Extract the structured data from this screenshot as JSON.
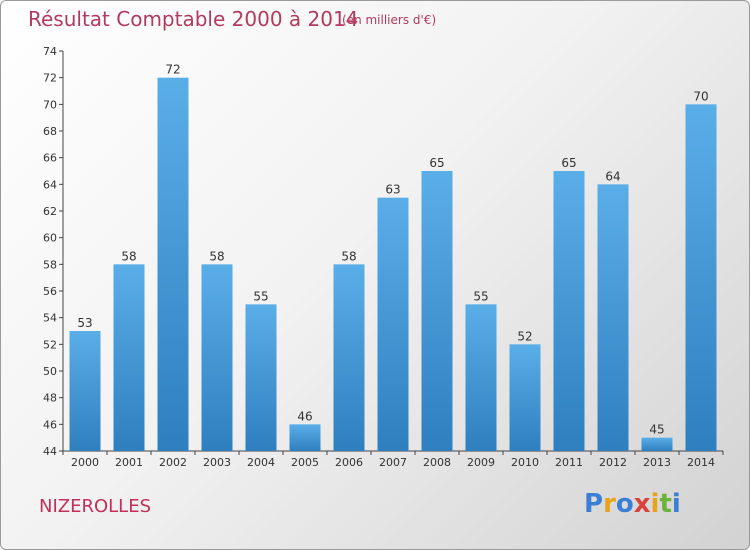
{
  "title": "Résultat Comptable 2000 à 2014",
  "subtitle": "(en milliers d'€)",
  "commune": "NIZEROLLES",
  "logo": {
    "text": "Proxiti",
    "colors": [
      "#3a7fd5",
      "#e8a21c",
      "#3a7fd5",
      "#d9433b",
      "#e8a21c",
      "#6bb43a",
      "#3a7fd5"
    ]
  },
  "chart_data": {
    "type": "bar",
    "title": "Résultat Comptable 2000 à 2014",
    "subtitle": "(en milliers d'€)",
    "xlabel": "",
    "ylabel": "",
    "categories": [
      "2000",
      "2001",
      "2002",
      "2003",
      "2004",
      "2005",
      "2006",
      "2007",
      "2008",
      "2009",
      "2010",
      "2011",
      "2012",
      "2013",
      "2014"
    ],
    "values": [
      53,
      58,
      72,
      58,
      55,
      46,
      58,
      63,
      65,
      55,
      52,
      65,
      64,
      45,
      70
    ],
    "ylim": [
      44,
      74
    ],
    "yticks": [
      44,
      46,
      48,
      50,
      52,
      54,
      56,
      58,
      60,
      62,
      64,
      66,
      68,
      70,
      72,
      74
    ],
    "grid": false,
    "bar_color_top": "#5aaee8",
    "bar_color_bottom": "#2f7fbf"
  }
}
